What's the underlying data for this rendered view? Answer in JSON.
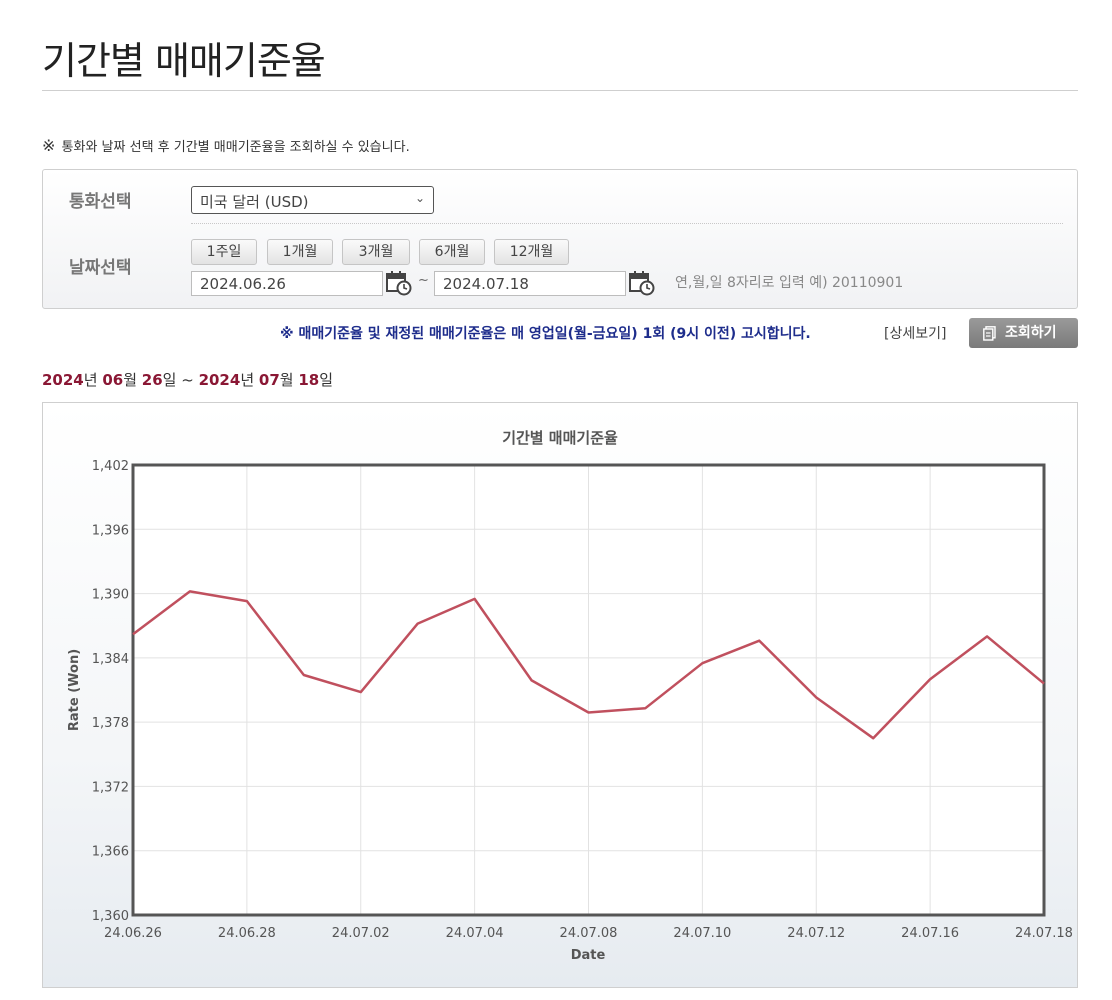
{
  "page": {
    "title": "기간별 매매기준율",
    "notice_mark": "※",
    "notice": "통화와 날짜 선택 후 기간별 매매기준율을 조회하실 수 있습니다."
  },
  "form": {
    "currency_label": "통화선택",
    "currency_value": "미국 달러 (USD)",
    "date_label": "날짜선택",
    "period_buttons": [
      "1주일",
      "1개월",
      "3개월",
      "6개월",
      "12개월"
    ],
    "start_date": "2024.06.26",
    "end_date": "2024.07.18",
    "tilde": "~",
    "date_hint": "연,월,일 8자리로 입력 예) 20110901"
  },
  "announcement": "※ 매매기준율 및 재정된 매매기준율은 매 영업일(월-금요일) 1회 (9시 이전) 고시합니다.",
  "detail_link": "[상세보기]",
  "search_button": "조회하기",
  "range_heading": {
    "y1": "2024",
    "y1s": "년 ",
    "m1": "06",
    "m1s": "월 ",
    "d1": "26",
    "d1s": "일 ~ ",
    "y2": "2024",
    "y2s": "년 ",
    "m2": "07",
    "m2s": "월 ",
    "d2": "18",
    "d2s": "일"
  },
  "chart_data": {
    "type": "line",
    "title": "기간별 매매기준율",
    "xlabel": "Date",
    "ylabel": "Rate (Won)",
    "x": [
      "24.06.26",
      "24.06.27",
      "24.06.28",
      "24.07.01",
      "24.07.02",
      "24.07.03",
      "24.07.04",
      "24.07.05",
      "24.07.08",
      "24.07.09",
      "24.07.10",
      "24.07.11",
      "24.07.12",
      "24.07.15",
      "24.07.16",
      "24.07.17",
      "24.07.18"
    ],
    "x_tick_labels": [
      "24.06.26",
      "24.06.28",
      "24.07.02",
      "24.07.04",
      "24.07.08",
      "24.07.10",
      "24.07.12",
      "24.07.16",
      "24.07.18"
    ],
    "series": [
      {
        "values": [
          1386.2,
          1390.2,
          1389.3,
          1382.4,
          1380.8,
          1387.2,
          1389.5,
          1381.9,
          1378.9,
          1379.3,
          1383.5,
          1385.6,
          1380.3,
          1376.5,
          1382.0,
          1386.0,
          1381.6
        ]
      }
    ],
    "ylim": [
      1360,
      1402
    ],
    "y_ticks": [
      "1,360",
      "1,366",
      "1,372",
      "1,378",
      "1,384",
      "1,390",
      "1,396",
      "1,402"
    ],
    "grid": true,
    "line_color": "#c0505e",
    "legend": "none"
  }
}
